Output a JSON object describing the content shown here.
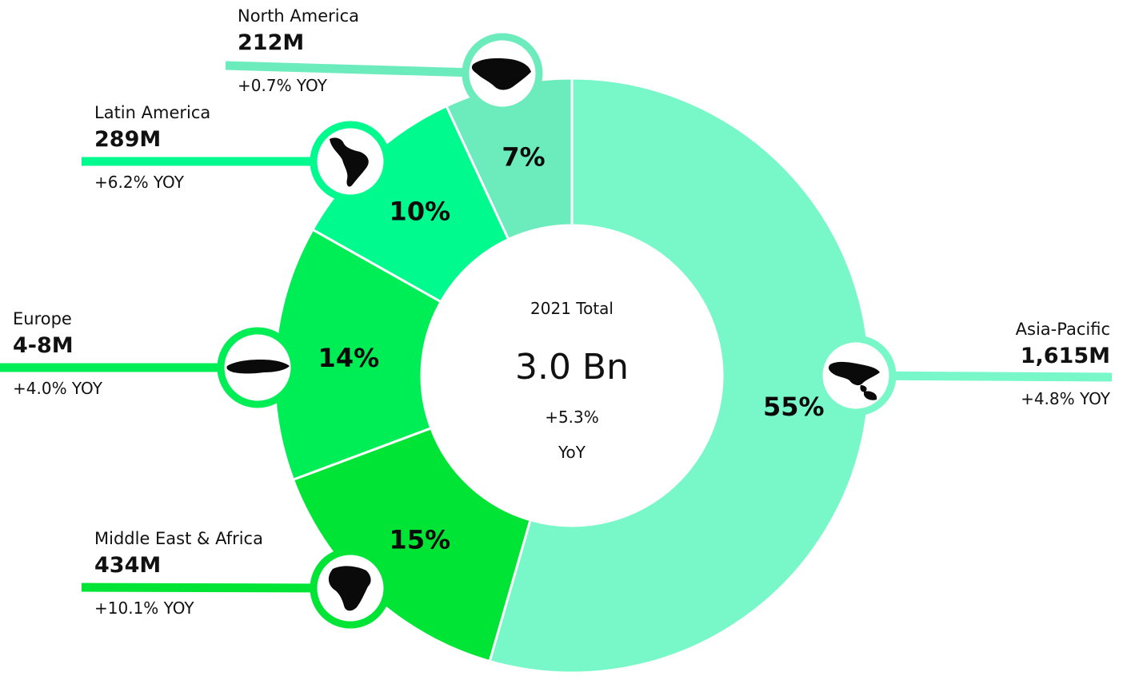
{
  "chart_data": {
    "type": "pie",
    "variant": "donut",
    "center": {
      "title": "2021 Total",
      "value": "3.0 Bn",
      "change": "+5.3%",
      "change_unit": "YoY"
    },
    "slices": [
      {
        "name": "Asia-Pacific",
        "value_label": "1,615M",
        "yoy": "+4.8% YOY",
        "percent": 55,
        "percent_label": "55%",
        "color": "#78f8c8",
        "icon": "asia-pacific-map-icon"
      },
      {
        "name": "Middle East & Africa",
        "value_label": "434M",
        "yoy": "+10.1% YOY",
        "percent": 15,
        "percent_label": "15%",
        "color": "#00e535",
        "icon": "africa-map-icon"
      },
      {
        "name": "Europe",
        "value_label": "4-8M",
        "yoy": "+4.0% YOY",
        "percent": 14,
        "percent_label": "14%",
        "color": "#00ee55",
        "icon": "europe-map-icon"
      },
      {
        "name": "Latin America",
        "value_label": "289M",
        "yoy": "+6.2% YOY",
        "percent": 10,
        "percent_label": "10%",
        "color": "#00fa8e",
        "icon": "latin-america-map-icon"
      },
      {
        "name": "North America",
        "value_label": "212M",
        "yoy": "+0.7% YOY",
        "percent": 7,
        "percent_label": "7%",
        "color": "#6cebbd",
        "icon": "north-america-map-icon"
      }
    ]
  }
}
